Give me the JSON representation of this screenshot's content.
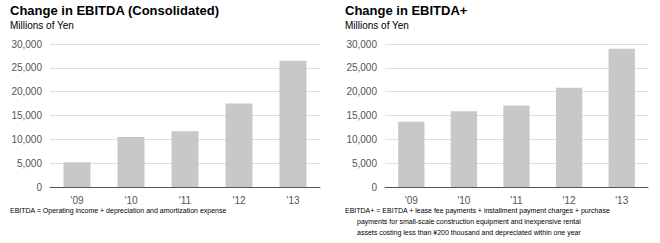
{
  "chart_data": [
    {
      "type": "bar",
      "title": "Change in EBITDA (Consolidated)",
      "ylabel": "Millions of Yen",
      "categories": [
        "'09",
        "'10",
        "'11",
        "'12",
        "'13"
      ],
      "values": [
        5200,
        10500,
        11700,
        17500,
        26500
      ],
      "color": "#c8c8c8",
      "ylim": [
        0,
        30000
      ],
      "yticks": [
        0,
        {
          "value": 5000,
          "label": "5,000"
        },
        {
          "value": 10000,
          "label": "10,000"
        },
        {
          "value": 15000,
          "label": "15,000"
        },
        {
          "value": 20000,
          "label": "20,000"
        },
        {
          "value": 25000,
          "label": "25,000"
        },
        {
          "value": 30000,
          "label": "30,000"
        }
      ],
      "grid": true,
      "annotations": [
        "EBITDA = Operating income + depreciation and amortization expense"
      ]
    },
    {
      "type": "bar",
      "title": "Change in EBITDA+",
      "ylabel": "Millions of Yen",
      "categories": [
        "'09",
        "'10",
        "'11",
        "'12",
        "'13"
      ],
      "values": [
        13700,
        15900,
        17100,
        20800,
        29000
      ],
      "color": "#c8c8c8",
      "ylim": [
        0,
        30000
      ],
      "yticks": [
        0,
        {
          "value": 5000,
          "label": "5,000"
        },
        {
          "value": 10000,
          "label": "10,000"
        },
        {
          "value": 15000,
          "label": "15,000"
        },
        {
          "value": 20000,
          "label": "20,000"
        },
        {
          "value": 25000,
          "label": "25,000"
        },
        {
          "value": 30000,
          "label": "30,000"
        }
      ],
      "grid": true,
      "annotations": [
        "EBITDA+ = EBITDA + lease fee payments + installment payment charges + purchase",
        "payments for small-scale construction equipment and inexpensive rental",
        "assets costing less than ¥200 thousand and depreciated within one year"
      ]
    }
  ]
}
